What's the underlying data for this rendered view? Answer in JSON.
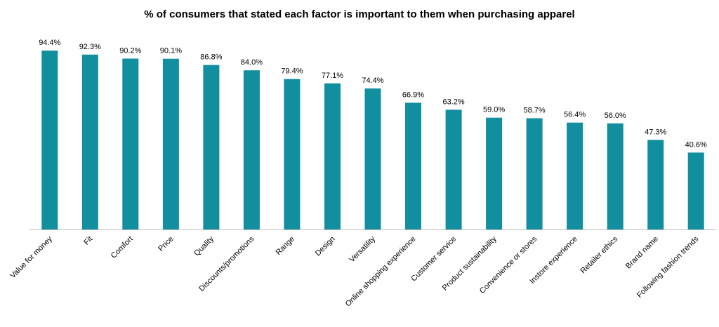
{
  "chart_data": {
    "type": "bar",
    "title": "% of consumers that stated each factor is important to them when purchasing apparel",
    "categories": [
      "Value for money",
      "Fit",
      "Comfort",
      "Price",
      "Quality",
      "Discounts/promotions",
      "Range",
      "Design",
      "Versatility",
      "Online shopping experience",
      "Customer service",
      "Product sustainability",
      "Convenience or stores",
      "Instore experience",
      "Retailer ethics",
      "Brand name",
      "Following fashion trends"
    ],
    "values": [
      94.4,
      92.3,
      90.2,
      90.1,
      86.8,
      84.0,
      79.4,
      77.1,
      74.4,
      66.9,
      63.2,
      59.0,
      58.7,
      56.4,
      56.0,
      47.3,
      40.6
    ],
    "value_labels": [
      "94.4%",
      "92.3%",
      "90.2%",
      "90.1%",
      "86.8%",
      "84.0%",
      "79.4%",
      "77.1%",
      "74.4%",
      "66.9%",
      "63.2%",
      "59.0%",
      "58.7%",
      "56.4%",
      "56.0%",
      "47.3%",
      "40.6%"
    ],
    "xlabel": "",
    "ylabel": "",
    "ylim": [
      0,
      100
    ],
    "grid": false,
    "legend": "none",
    "bar_color": "#118F9F",
    "axis_color": "#BFBFBF"
  }
}
